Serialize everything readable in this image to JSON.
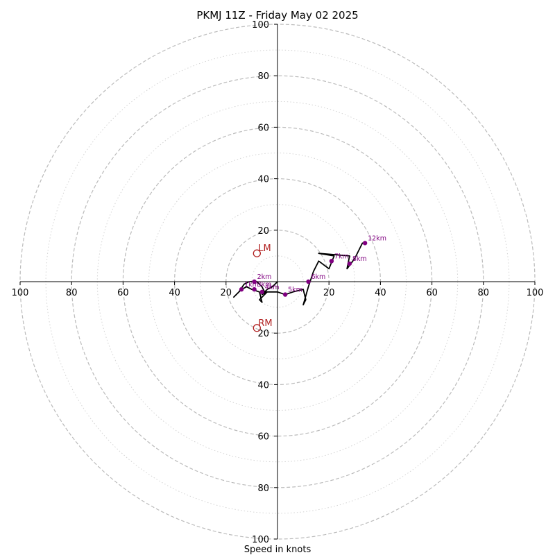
{
  "chart_data": {
    "type": "hodograph",
    "title": "PKMJ 11Z - Friday May 02 2025",
    "xlabel": "Speed in knots",
    "range": 100,
    "rings": {
      "major": [
        20,
        40,
        60,
        80,
        100
      ],
      "minor": [
        10,
        30,
        50,
        70,
        90
      ]
    },
    "tick_labels": {
      "x_left": [
        "100",
        "80",
        "60",
        "40",
        "20"
      ],
      "x_right": [
        "20",
        "40",
        "60",
        "80",
        "100"
      ],
      "y_up": [
        "20",
        "40",
        "60",
        "80",
        "100"
      ],
      "y_down": [
        "20",
        "40",
        "60",
        "80",
        "100"
      ]
    },
    "trace": [
      [
        0,
        0
      ],
      [
        -2,
        -2
      ],
      [
        -4,
        -3
      ],
      [
        -6,
        -5
      ],
      [
        -4,
        -4
      ],
      [
        -7,
        -7
      ],
      [
        -6,
        -8
      ],
      [
        -7,
        -4
      ],
      [
        -10,
        -3
      ],
      [
        -12,
        -2
      ],
      [
        -14,
        -3
      ],
      [
        -16,
        -5
      ],
      [
        -17,
        -6
      ],
      [
        -15,
        -4
      ],
      [
        -13,
        -1
      ],
      [
        -11,
        0
      ],
      [
        -9,
        0
      ],
      [
        -8,
        0
      ],
      [
        -6,
        -2
      ],
      [
        -5,
        -4
      ],
      [
        -4,
        -4
      ],
      [
        -2,
        -4
      ],
      [
        -1,
        -4
      ],
      [
        0,
        -4
      ],
      [
        3,
        -5
      ],
      [
        6,
        -4
      ],
      [
        10,
        -3
      ],
      [
        11,
        -7
      ],
      [
        10,
        -9
      ],
      [
        12,
        -2
      ],
      [
        14,
        4
      ],
      [
        16,
        8
      ],
      [
        20,
        5
      ],
      [
        22,
        10
      ],
      [
        16,
        11
      ],
      [
        28,
        10
      ],
      [
        27,
        5
      ],
      [
        30,
        9
      ],
      [
        33,
        15
      ],
      [
        34,
        15
      ]
    ],
    "height_markers": [
      {
        "label": "1km",
        "u": -14,
        "v": -3
      },
      {
        "label": "2km",
        "u": -9,
        "v": 0
      },
      {
        "label": "3km",
        "u": -9,
        "v": -3
      },
      {
        "label": "4km",
        "u": -6,
        "v": -4
      },
      {
        "label": "5km",
        "u": 3,
        "v": -5
      },
      {
        "label": "6km",
        "u": 12,
        "v": 0
      },
      {
        "label": "7km",
        "u": 21,
        "v": 8
      },
      {
        "label": "8km",
        "u": 28,
        "v": 7
      },
      {
        "label": "12km",
        "u": 34,
        "v": 15
      }
    ],
    "storm_motion": [
      {
        "label": "LM",
        "u": -8,
        "v": 11
      },
      {
        "label": "RM",
        "u": -8,
        "v": -18
      }
    ],
    "colors": {
      "trace": "#000000",
      "markers": "#800080",
      "storm_motion": "#b22222",
      "rings": "#bbbbbb",
      "axes": "#000000"
    }
  }
}
